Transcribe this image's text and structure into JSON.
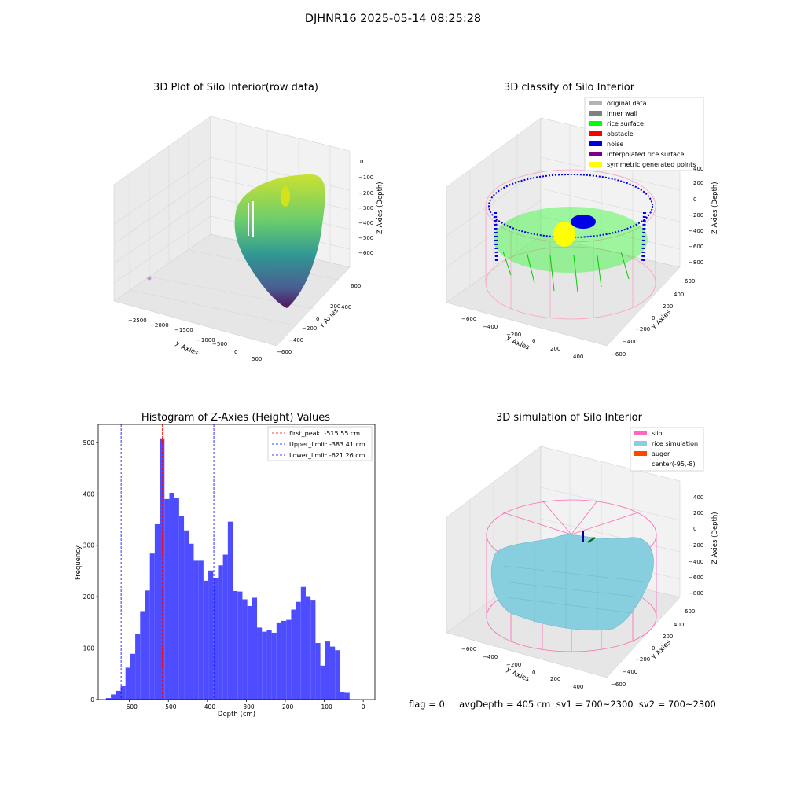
{
  "figure_title": "DJHNR16 2025-05-14 08:25:28",
  "footer": "flag = 0     avgDepth = 405 cm  sv1 = 700~2300  sv2 = 700~2300",
  "colors": {
    "histogram_bar": "#4d4dff",
    "first_peak_line": "#ff0000",
    "limit_lines": "#0000ff",
    "original_data": "#b3b3b3",
    "inner_wall": "#808080",
    "rice_surface": "#00ff00",
    "obstacle": "#ff0000",
    "noise": "#0000e6",
    "interpolated_rice_surface": "#800080",
    "symmetric_generated_points": "#ffff00",
    "silo": "#ff69b4",
    "rice_simulation": "#87cedf",
    "auger": "#ff4500"
  },
  "chart_data": [
    {
      "type": "scatter",
      "title": "3D Plot of Silo Interior(row data)",
      "xlabel": "X Axies",
      "ylabel": "Y Axies",
      "zlabel": "Z Axies (Depth)",
      "x_ticks": [
        "−2500",
        "−2000",
        "−1500",
        "−1000",
        "−500",
        "0",
        "500"
      ],
      "y_ticks": [
        "600",
        "400",
        "200",
        "0",
        "−200",
        "−400",
        "−600"
      ],
      "z_ticks": [
        "0",
        "−100",
        "−200",
        "−300",
        "−400",
        "−500",
        "−600"
      ],
      "colormap": "viridis"
    },
    {
      "type": "scatter",
      "title": "3D classify of Silo Interior",
      "xlabel": "X Axies",
      "ylabel": "Y Axies",
      "zlabel": "Z Axies (Depth)",
      "x_ticks": [
        "−600",
        "−400",
        "−200",
        "0",
        "200",
        "400"
      ],
      "y_ticks": [
        "600",
        "400",
        "200",
        "0",
        "−200",
        "−400",
        "−600"
      ],
      "z_ticks": [
        "200",
        "0",
        "−200",
        "−400",
        "−600",
        "−800"
      ],
      "z_top_tick": "400",
      "legend": [
        "original data",
        "inner wall",
        "rice surface",
        "obstacle",
        "noise",
        "interpolated rice surface",
        "symmetric generated points"
      ]
    },
    {
      "type": "bar",
      "title": "Histogram of Z-Axies (Height) Values",
      "xlabel": "Depth (cm)",
      "ylabel": "Frequency",
      "xlim": [
        -680,
        30
      ],
      "ylim": [
        0,
        535
      ],
      "x_ticks": [
        -600,
        -500,
        -400,
        -300,
        -200,
        -100,
        0
      ],
      "y_ticks": [
        0,
        100,
        200,
        300,
        400,
        500
      ],
      "bin_start": -660,
      "bin_width": 12.5,
      "values": [
        3,
        10,
        17,
        26,
        62,
        89,
        127,
        172,
        212,
        284,
        341,
        508,
        390,
        402,
        392,
        357,
        329,
        303,
        270,
        270,
        231,
        251,
        237,
        261,
        282,
        346,
        211,
        210,
        195,
        182,
        198,
        140,
        132,
        135,
        130,
        150,
        153,
        155,
        175,
        190,
        219,
        201,
        194,
        110,
        66,
        113,
        103,
        96,
        15,
        13
      ],
      "lines": [
        {
          "label": "first_peak: -515.55 cm",
          "x": -515.55,
          "color": "#ff0000"
        },
        {
          "label": "Upper_limit: -383.41 cm",
          "x": -383.41,
          "color": "#0000ff"
        },
        {
          "label": "Lower_limit: -621.26 cm",
          "x": -621.26,
          "color": "#0000ff"
        }
      ]
    },
    {
      "type": "scatter",
      "title": "3D simulation of Silo Interior",
      "xlabel": "X Axies",
      "ylabel": "Y Axies",
      "zlabel": "Z Axies (Depth)",
      "x_ticks": [
        "−600",
        "−400",
        "−200",
        "0",
        "200",
        "400"
      ],
      "y_ticks": [
        "600",
        "400",
        "200",
        "0",
        "−200",
        "−400",
        "−600"
      ],
      "z_ticks": [
        "400",
        "200",
        "0",
        "−200",
        "−400",
        "−600",
        "−800"
      ],
      "legend": [
        "silo",
        "rice simulation",
        "auger",
        "center(-95,-8)"
      ]
    }
  ]
}
